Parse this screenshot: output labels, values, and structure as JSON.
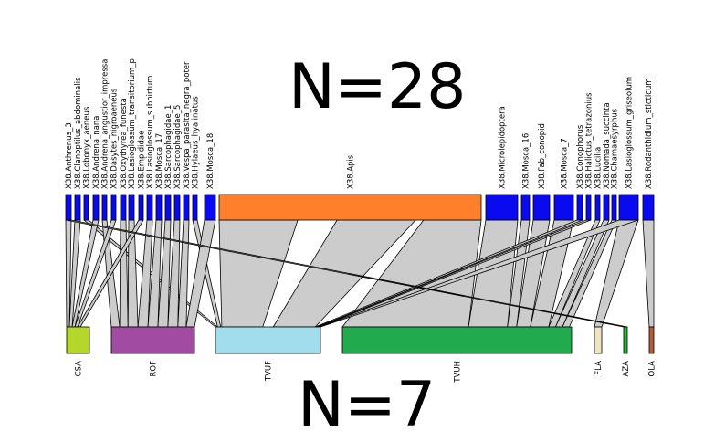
{
  "chart_data": {
    "type": "bipartite",
    "title": "",
    "top_count_label": "N=28",
    "bottom_count_label": "N=7",
    "bottom_nodes": [
      {
        "name": "CSA",
        "color": "#B5D62B"
      },
      {
        "name": "ROF",
        "color": "#A24BA2"
      },
      {
        "name": "TVUF",
        "color": "#A2DDEE"
      },
      {
        "name": "TVUH",
        "color": "#22AA4E"
      },
      {
        "name": "FLA",
        "color": "#EEE5C2"
      },
      {
        "name": "AZA",
        "color": "#1FBF2E"
      },
      {
        "name": "OLA",
        "color": "#B05D3B"
      }
    ],
    "top_nodes": [
      {
        "name": "X38.Anthrenus_3",
        "color": "#0A0AF0"
      },
      {
        "name": "X38.Clanoptilus_abdominalis",
        "color": "#0A0AF0"
      },
      {
        "name": "X38.Lobonyx_aeneus",
        "color": "#0A0AF0"
      },
      {
        "name": "X38.Andrena_nana",
        "color": "#0A0AF0"
      },
      {
        "name": "X38.Andrena_angustior_impressa",
        "color": "#0A0AF0"
      },
      {
        "name": "X38.Dasytes_nigroaeneus",
        "color": "#0A0AF0"
      },
      {
        "name": "X38.Oxythyrea_funesta",
        "color": "#0A0AF0"
      },
      {
        "name": "X38.Lasioglossum_transitorium_p",
        "color": "#0A0AF0"
      },
      {
        "name": "X38.Empididae",
        "color": "#0A0AF0"
      },
      {
        "name": "X38.Lasioglossum_subhirtum",
        "color": "#0A0AF0"
      },
      {
        "name": "X38.Mosca_17",
        "color": "#0A0AF0"
      },
      {
        "name": "X38.Sarcophagidae_1",
        "color": "#0A0AF0"
      },
      {
        "name": "X38.Sarcophagidae_5",
        "color": "#0A0AF0"
      },
      {
        "name": "X38.Vespa_parasita_negra_poter",
        "color": "#0A0AF0"
      },
      {
        "name": "X38.Hylaeus_hyalinatus",
        "color": "#0A0AF0"
      },
      {
        "name": "X38.Mosca_18",
        "color": "#0A0AF0"
      },
      {
        "name": "X38.Apis",
        "color": "#FF7F2A"
      },
      {
        "name": "X38.Microlepidoptera",
        "color": "#0A0AF0"
      },
      {
        "name": "X38.Mosca_16",
        "color": "#0A0AF0"
      },
      {
        "name": "X38.Fab_conopid",
        "color": "#0A0AF0"
      },
      {
        "name": "X38.Mosca_7",
        "color": "#0A0AF0"
      },
      {
        "name": "X38.Conophorus",
        "color": "#0A0AF0"
      },
      {
        "name": "X38.Halictus_tetrazonius",
        "color": "#0A0AF0"
      },
      {
        "name": "X38.Lucilia",
        "color": "#0A0AF0"
      },
      {
        "name": "X38.Nomada_succinta",
        "color": "#0A0AF0"
      },
      {
        "name": "X38.Chamaesyrphus",
        "color": "#0A0AF0"
      },
      {
        "name": "X38.Lasioglossum_griseolum",
        "color": "#0A0AF0"
      },
      {
        "name": "X38.Rodanthidium_sticticum",
        "color": "#0A0AF0"
      }
    ],
    "link_color": "#CCCCCC",
    "border_color": "#000000"
  }
}
